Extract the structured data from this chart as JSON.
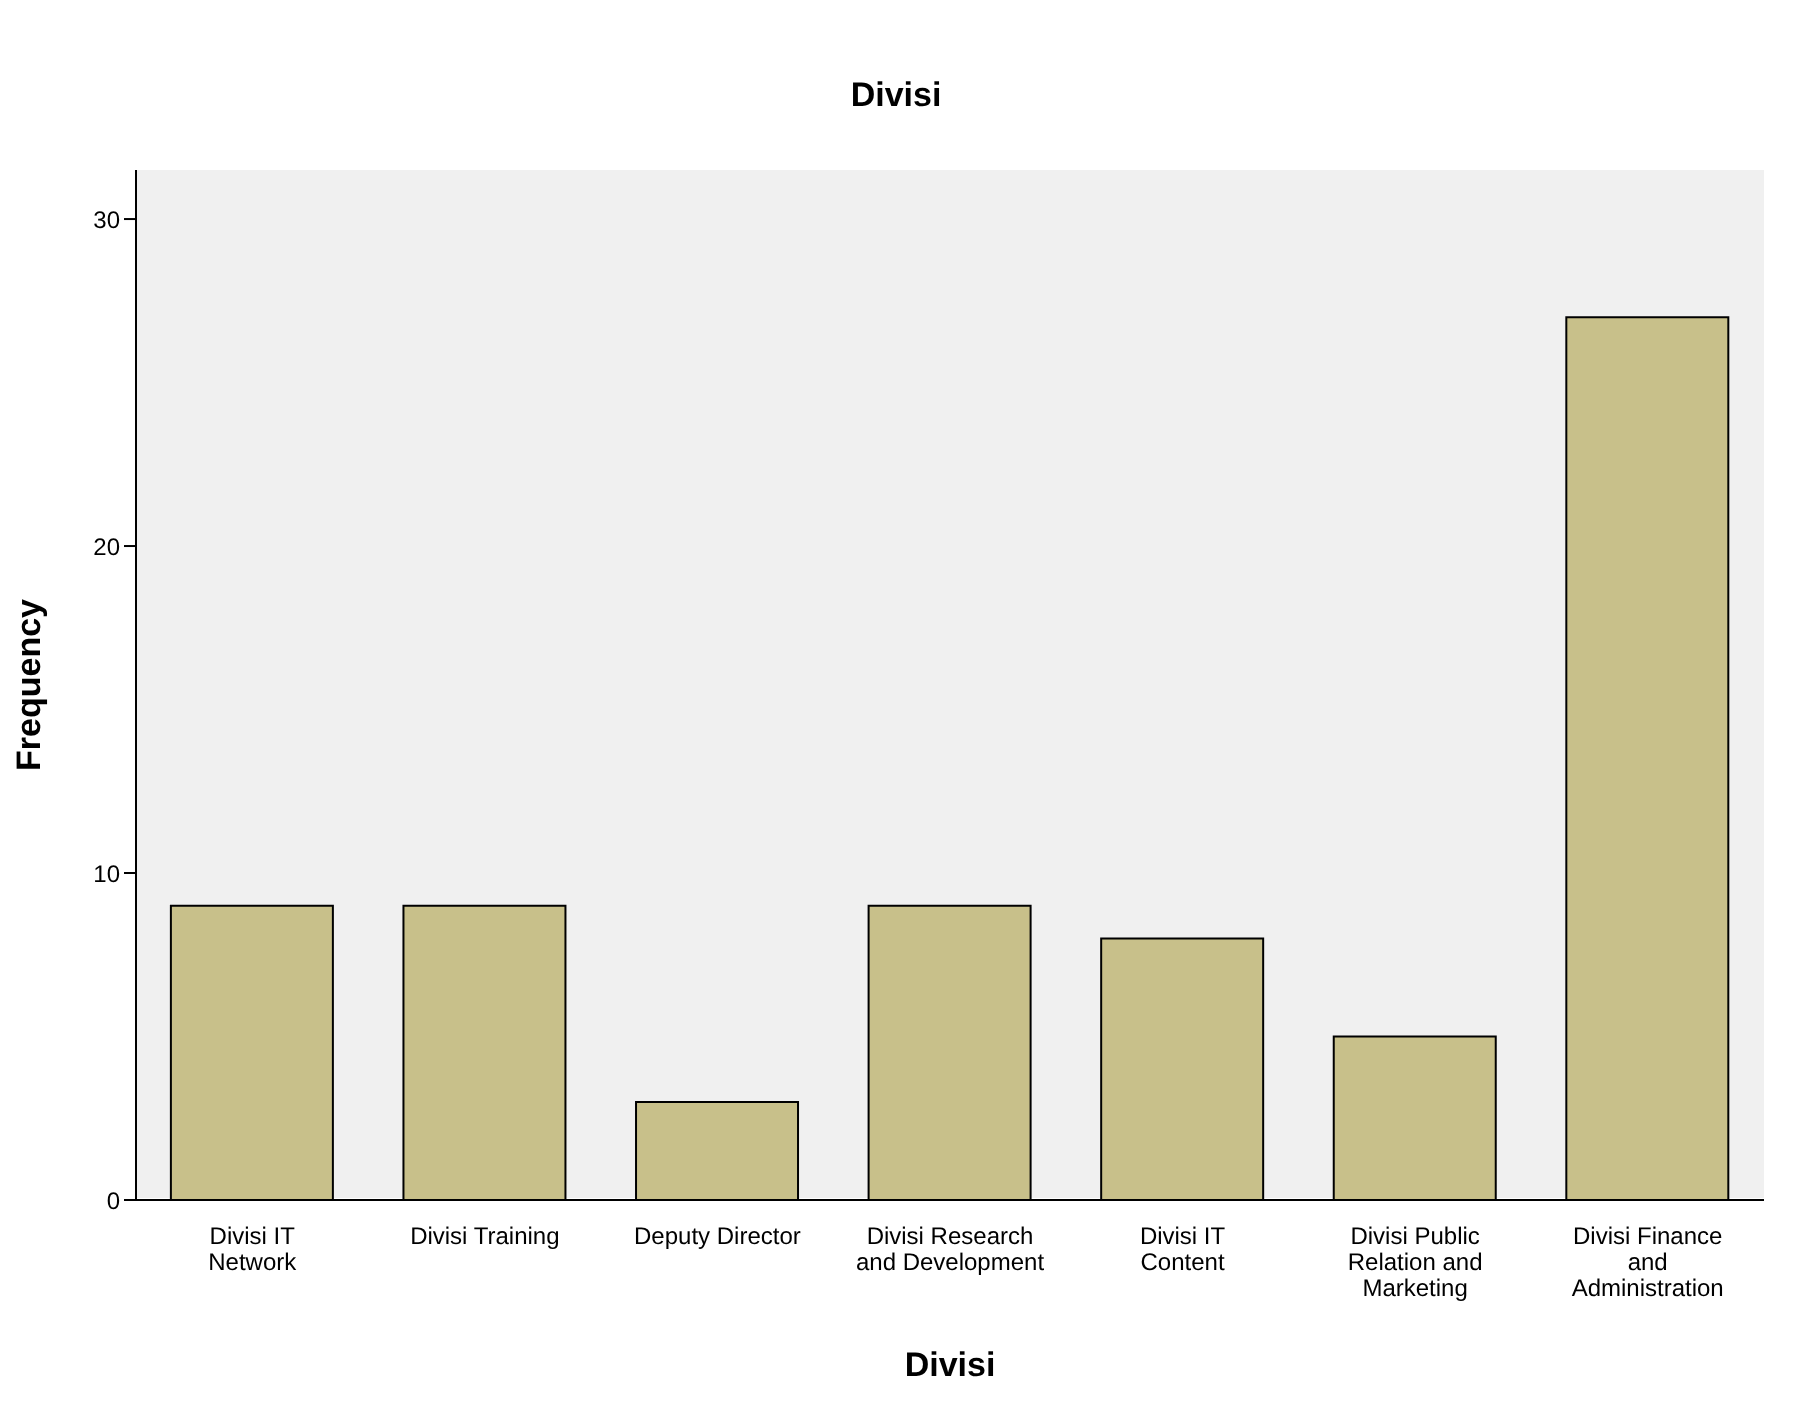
{
  "chart_data": {
    "type": "bar",
    "title": "Divisi",
    "xlabel": "Divisi",
    "ylabel": "Frequency",
    "categories": [
      "Divisi IT Network",
      "Divisi Training",
      "Deputy Director",
      "Divisi Research and Development",
      "Divisi IT Content",
      "Divisi Public Relation and Marketing",
      "Divisi Finance and Administration"
    ],
    "values": [
      9,
      9,
      3,
      9,
      8,
      5,
      27
    ],
    "color": "#c8c08a",
    "ylim": [
      0,
      31.5
    ],
    "yticks": [
      0,
      10,
      20,
      30
    ],
    "grid": false,
    "legend": false
  }
}
